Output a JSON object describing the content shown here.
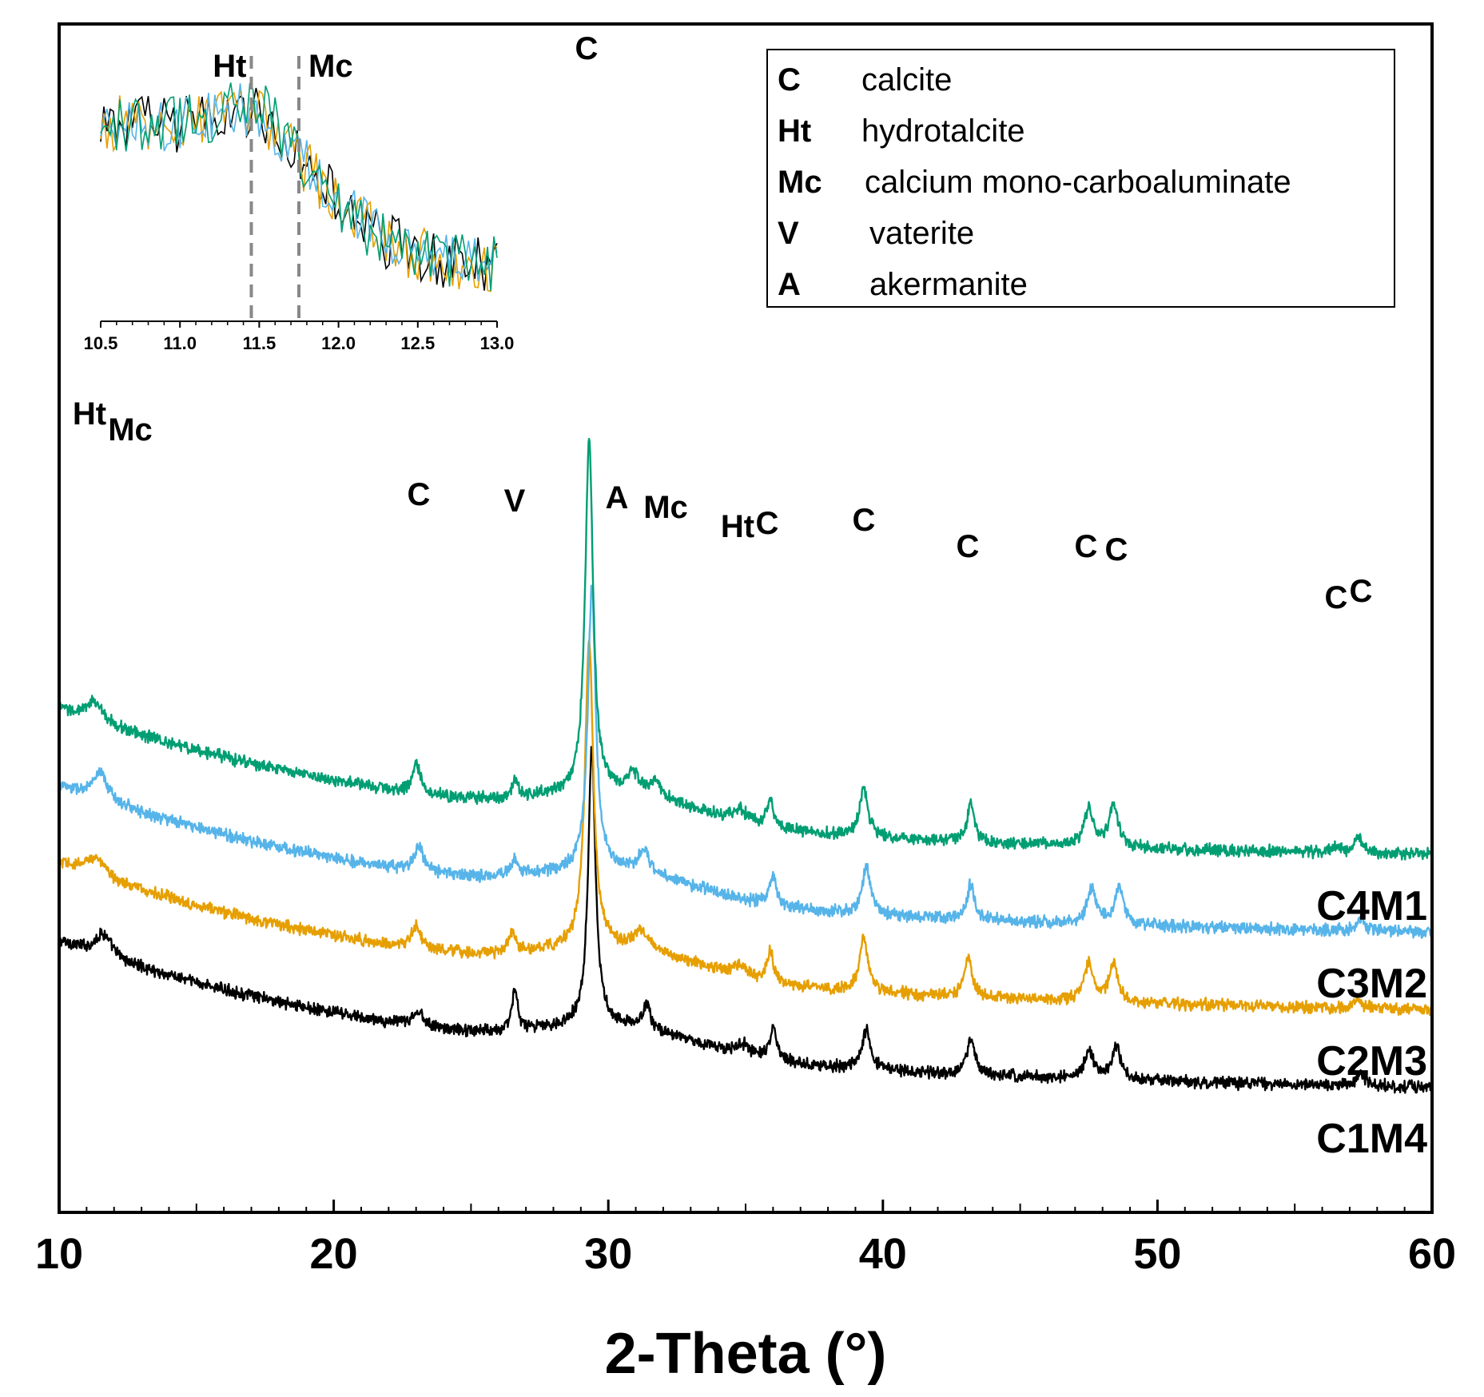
{
  "chart_data": {
    "type": "line",
    "title": "",
    "xlabel": "2-Theta (°)",
    "ylabel": "",
    "xlim": [
      10,
      60
    ],
    "x_ticks": [
      "10",
      "20",
      "30",
      "40",
      "50",
      "60"
    ],
    "y_ticks": [],
    "series": [
      {
        "name": "C1M4",
        "color": "#000000",
        "offset": 0.0,
        "base_start": 0.3,
        "base_end": 0.065,
        "hump": 0.04,
        "noise": 0.01,
        "peaks": [
          [
            11.6,
            0.035,
            0.35
          ],
          [
            23.1,
            0.022,
            0.25
          ],
          [
            26.6,
            0.065,
            0.12
          ],
          [
            29.4,
            0.43,
            0.16
          ],
          [
            31.4,
            0.04,
            0.15
          ],
          [
            34.9,
            0.015,
            0.3
          ],
          [
            36.0,
            0.048,
            0.15
          ],
          [
            39.4,
            0.062,
            0.18
          ],
          [
            43.2,
            0.055,
            0.17
          ],
          [
            47.5,
            0.04,
            0.22
          ],
          [
            48.5,
            0.05,
            0.2
          ],
          [
            57.4,
            0.022,
            0.15
          ]
        ]
      },
      {
        "name": "C2M3",
        "color": "#E69F00",
        "offset": 0.12,
        "base_start": 0.3,
        "base_end": 0.065,
        "hump": 0.04,
        "noise": 0.01,
        "peaks": [
          [
            11.3,
            0.03,
            0.4
          ],
          [
            23.0,
            0.035,
            0.2
          ],
          [
            26.5,
            0.03,
            0.15
          ],
          [
            29.3,
            0.48,
            0.18
          ],
          [
            31.2,
            0.03,
            0.3
          ],
          [
            34.8,
            0.018,
            0.3
          ],
          [
            35.9,
            0.045,
            0.15
          ],
          [
            39.3,
            0.085,
            0.18
          ],
          [
            43.1,
            0.065,
            0.16
          ],
          [
            47.5,
            0.058,
            0.2
          ],
          [
            48.4,
            0.058,
            0.2
          ],
          [
            57.3,
            0.015,
            0.15
          ]
        ]
      },
      {
        "name": "C3M2",
        "color": "#56B4E9",
        "offset": 0.24,
        "base_start": 0.3,
        "base_end": 0.065,
        "hump": 0.04,
        "noise": 0.01,
        "peaks": [
          [
            11.5,
            0.04,
            0.35
          ],
          [
            23.1,
            0.04,
            0.2
          ],
          [
            26.6,
            0.025,
            0.15
          ],
          [
            29.4,
            0.44,
            0.17
          ],
          [
            31.3,
            0.035,
            0.25
          ],
          [
            36.0,
            0.045,
            0.15
          ],
          [
            39.4,
            0.075,
            0.18
          ],
          [
            43.2,
            0.055,
            0.16
          ],
          [
            47.6,
            0.055,
            0.2
          ],
          [
            48.6,
            0.055,
            0.2
          ],
          [
            57.4,
            0.018,
            0.15
          ]
        ]
      },
      {
        "name": "C4M1",
        "color": "#009E73",
        "offset": 0.36,
        "base_start": 0.3,
        "base_end": 0.065,
        "hump": 0.04,
        "noise": 0.01,
        "peaks": [
          [
            11.3,
            0.03,
            0.35
          ],
          [
            23.0,
            0.045,
            0.18
          ],
          [
            26.6,
            0.03,
            0.12
          ],
          [
            29.3,
            0.55,
            0.17
          ],
          [
            30.9,
            0.03,
            0.25
          ],
          [
            31.7,
            0.025,
            0.25
          ],
          [
            34.8,
            0.018,
            0.3
          ],
          [
            35.9,
            0.042,
            0.15
          ],
          [
            39.3,
            0.075,
            0.18
          ],
          [
            43.2,
            0.062,
            0.15
          ],
          [
            47.5,
            0.06,
            0.2
          ],
          [
            48.4,
            0.065,
            0.2
          ],
          [
            56.5,
            0.01,
            0.2
          ],
          [
            57.3,
            0.028,
            0.15
          ]
        ]
      }
    ],
    "peak_labels": [
      {
        "text": "Ht",
        "x": 11.1,
        "y": 1.1
      },
      {
        "text": "Mc",
        "x": 12.6,
        "y": 1.075
      },
      {
        "text": "C",
        "x": 23.1,
        "y": 0.975
      },
      {
        "text": "V",
        "x": 26.6,
        "y": 0.965
      },
      {
        "text": "C",
        "x": 29.2,
        "y": 1.665
      },
      {
        "text": "A",
        "x": 30.3,
        "y": 0.97
      },
      {
        "text": "Mc",
        "x": 32.1,
        "y": 0.955
      },
      {
        "text": "Ht",
        "x": 34.7,
        "y": 0.925
      },
      {
        "text": "C",
        "x": 35.8,
        "y": 0.93
      },
      {
        "text": "C",
        "x": 39.3,
        "y": 0.935
      },
      {
        "text": "C",
        "x": 43.1,
        "y": 0.895
      },
      {
        "text": "C",
        "x": 47.4,
        "y": 0.895
      },
      {
        "text": "C",
        "x": 48.5,
        "y": 0.89
      },
      {
        "text": "C",
        "x": 56.5,
        "y": 0.815
      },
      {
        "text": "C",
        "x": 57.4,
        "y": 0.825
      }
    ],
    "legend": {
      "position": "top-right",
      "entries": [
        {
          "abbr": "C",
          "name": "calcite"
        },
        {
          "abbr": "Ht",
          "name": "hydrotalcite"
        },
        {
          "abbr": "Mc",
          "name": "calcium mono-carboaluminate"
        },
        {
          "abbr": "V",
          "name": "vaterite"
        },
        {
          "abbr": "A",
          "name": "akermanite"
        }
      ]
    },
    "inset": {
      "position": "top-left",
      "xlim": [
        10.5,
        13.0
      ],
      "x_ticks": [
        "10.5",
        "11.0",
        "11.5",
        "12.0",
        "12.5",
        "13.0"
      ],
      "markers": [
        {
          "label": "Ht",
          "x": 11.45
        },
        {
          "label": "Mc",
          "x": 11.75
        }
      ]
    }
  }
}
